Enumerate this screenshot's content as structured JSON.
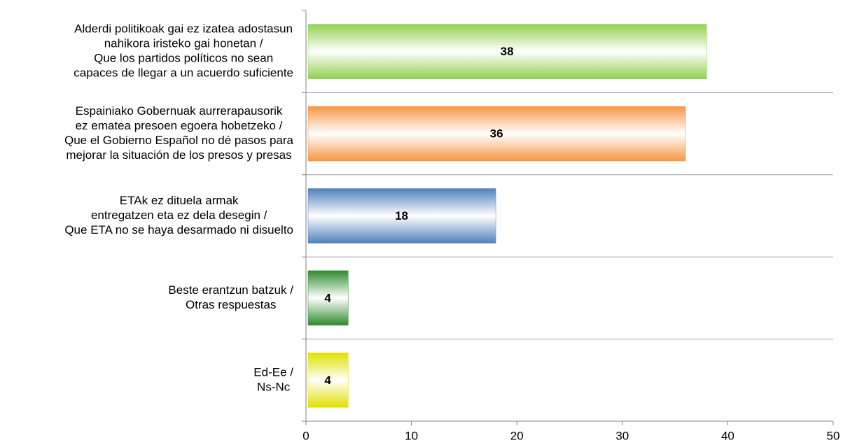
{
  "chart_data": {
    "type": "hbar",
    "categories": [
      [
        "Alderdi politikoak gai ez izatea adostasun",
        "nahikora iristeko gai honetan /",
        "Que los partidos políticos no sean",
        "capaces de llegar a un acuerdo suficiente"
      ],
      [
        "Espainiako Gobernuak aurrerapausorik",
        "ez ematea presoen egoera hobetzeko /",
        "Que el Gobierno Español no dé pasos para",
        "mejorar la situación de los presos y presas"
      ],
      [
        "ETAk ez dituela armak",
        "entregatzen eta ez dela desegin /",
        "Que ETA no se haya desarmado ni disuelto"
      ],
      [
        "Beste erantzun batzuk /",
        "Otras respuestas"
      ],
      [
        "Ed-Ee /",
        "Ns-Nc"
      ]
    ],
    "values": [
      38,
      36,
      18,
      4,
      4
    ],
    "colors": [
      "#92d050",
      "#f79646",
      "#4f81bd",
      "#2e8b2e",
      "#e0e000"
    ],
    "xlim": [
      0,
      50
    ],
    "xticks": [
      0,
      10,
      20,
      30,
      40,
      50
    ]
  }
}
